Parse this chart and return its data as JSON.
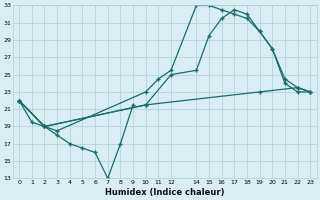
{
  "xlabel": "Humidex (Indice chaleur)",
  "bg_color": "#d9eef2",
  "grid_color": "#b0cdd4",
  "line_color": "#1a6b6b",
  "xlim": [
    -0.5,
    23.5
  ],
  "ylim": [
    13,
    33
  ],
  "xtick_positions": [
    0,
    1,
    2,
    3,
    4,
    5,
    6,
    7,
    8,
    9,
    10,
    11,
    12,
    14,
    15,
    16,
    17,
    18,
    19,
    20,
    21,
    22,
    23
  ],
  "xtick_labels": [
    "0",
    "1",
    "2",
    "3",
    "4",
    "5",
    "6",
    "7",
    "8",
    "9",
    "10",
    "11",
    "12",
    "14",
    "15",
    "16",
    "17",
    "18",
    "19",
    "20",
    "21",
    "22",
    "23"
  ],
  "ytick_positions": [
    13,
    15,
    17,
    19,
    21,
    23,
    25,
    27,
    29,
    31,
    33
  ],
  "ytick_labels": [
    "13",
    "15",
    "17",
    "19",
    "21",
    "23",
    "25",
    "27",
    "29",
    "31",
    "33"
  ],
  "curve1_x": [
    0,
    1,
    2,
    3,
    4,
    5,
    6,
    7,
    8,
    9
  ],
  "curve1_y": [
    22.0,
    19.5,
    19.0,
    18.0,
    17.0,
    16.5,
    16.0,
    13.0,
    17.0,
    21.5
  ],
  "curve2_x": [
    0,
    2,
    3,
    10,
    11,
    12,
    14,
    15,
    16,
    17,
    18,
    19,
    20,
    21,
    22,
    23
  ],
  "curve2_y": [
    22.0,
    19.0,
    18.5,
    23.0,
    24.5,
    25.5,
    33.0,
    33.0,
    32.5,
    32.0,
    31.5,
    30.0,
    28.0,
    24.0,
    23.0,
    23.0
  ],
  "curve3_x": [
    0,
    2,
    10,
    12,
    14,
    15,
    16,
    17,
    18,
    19,
    20,
    21,
    22,
    23
  ],
  "curve3_y": [
    22.0,
    19.0,
    21.5,
    25.0,
    25.5,
    29.5,
    31.5,
    32.5,
    32.0,
    30.0,
    28.0,
    24.5,
    23.5,
    23.0
  ],
  "curve4_x": [
    0,
    2,
    10,
    19,
    22,
    23
  ],
  "curve4_y": [
    22.0,
    19.0,
    21.5,
    23.0,
    23.5,
    23.0
  ]
}
